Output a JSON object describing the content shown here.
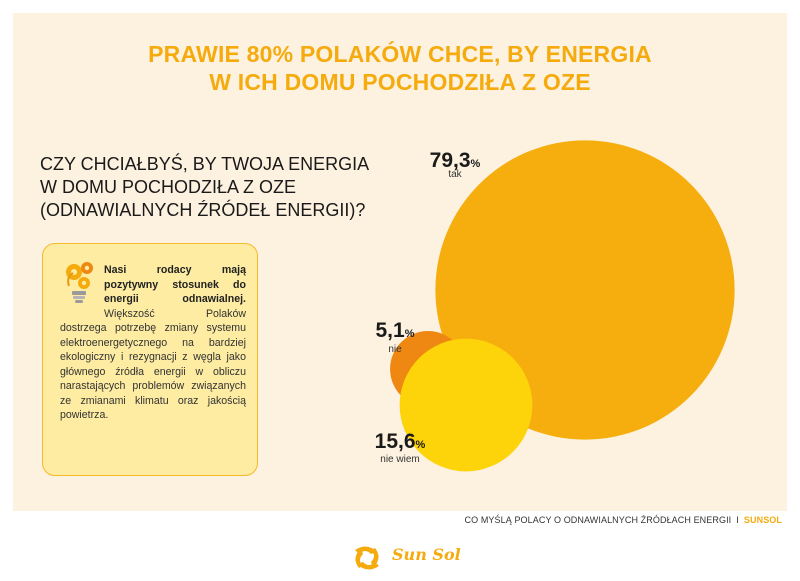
{
  "title_line1": "PRAWIE 80% POLAKÓW CHCE, BY ENERGIA",
  "title_line2": "W ICH DOMU POCHODZIŁA Z OZE",
  "question_line1": "CZY CHCIAŁBYŚ, BY TWOJA ENERGIA",
  "question_line2": "W DOMU POCHODZIŁA Z OZE",
  "question_line3": "(ODNAWIALNYCH ŹRÓDEŁ ENERGII)?",
  "info_bold": "Nasi rodacy mają pozytywny stosunek do energii odnawialnej.",
  "info_text": "Większość Polaków dostrzega potrzebę zmiany systemu elektroenergetycznego na bardziej ekologiczny i rezygnacji z węgla jako głównego źródła energii w obliczu narastających problemów związanych ze zmianami klimatu oraz jakością powietrza.",
  "footer_text": "CO MYŚLĄ POLACY O ODNAWIALNYCH ŹRÓDŁACH ENERGII",
  "footer_sep": "I",
  "footer_brand": "SUNSOL",
  "logo_text": "Sun Sol",
  "icons": {
    "bulb": "lightbulb-gears-icon",
    "logo": "sunsol-logo-icon"
  },
  "colors": {
    "accent": "#f5ab0e",
    "tak": "#f6ae0f",
    "nie": "#ef8813",
    "nie_wiem": "#fdd30a",
    "background": "#fdf1df"
  },
  "chart_data": {
    "type": "bubble",
    "unit": "%",
    "series": [
      {
        "label": "tak",
        "value": 79.3,
        "display": "79,3",
        "color": "#f6ae0f"
      },
      {
        "label": "nie",
        "value": 5.1,
        "display": "5,1",
        "color": "#ef8813"
      },
      {
        "label": "nie wiem",
        "value": 15.6,
        "display": "15,6",
        "color": "#fdd30a"
      }
    ]
  }
}
